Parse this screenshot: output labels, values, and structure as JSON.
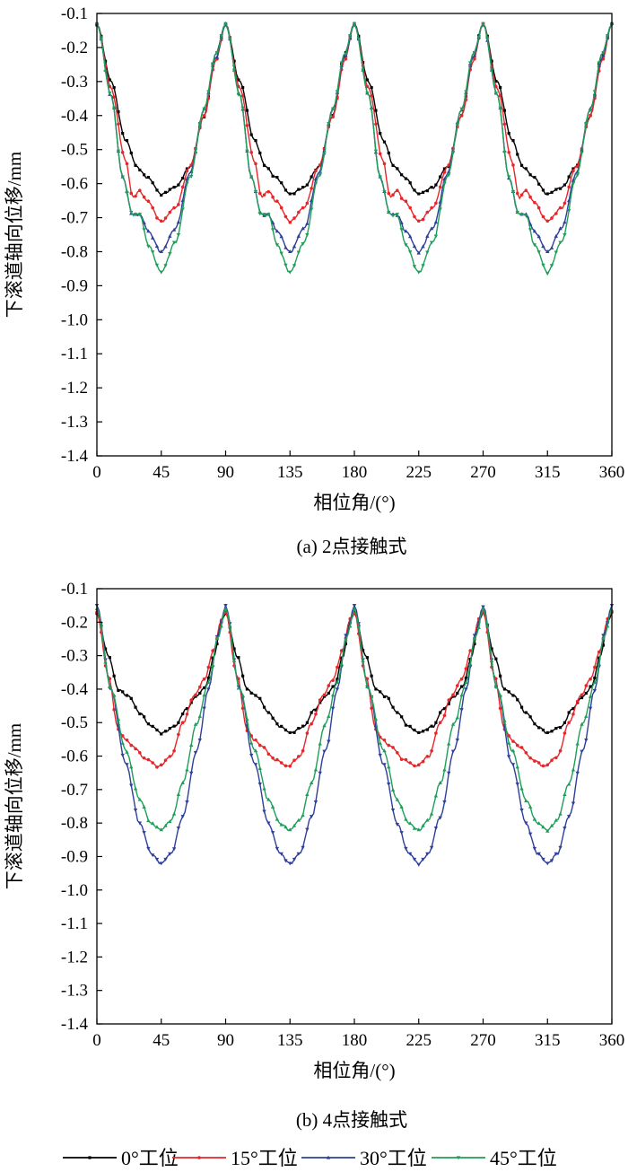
{
  "charts": [
    {
      "caption": "(a) 2点接触式",
      "xlabel": "相位角/(°)",
      "ylabel": "下滚道轴向位移/mm",
      "xticks": [
        "0",
        "45",
        "90",
        "135",
        "180",
        "225",
        "270",
        "315",
        "360"
      ],
      "yticks": [
        "-0.1",
        "-0.2",
        "-0.3",
        "-0.4",
        "-0.5",
        "-0.6",
        "-0.7",
        "-0.8",
        "-0.9",
        "-1.0",
        "-1.1",
        "-1.2",
        "-1.3",
        "-1.4"
      ]
    },
    {
      "caption": "(b) 4点接触式",
      "xlabel": "相位角/(°)",
      "ylabel": "下滚道轴向位移/mm",
      "xticks": [
        "0",
        "45",
        "90",
        "135",
        "180",
        "225",
        "270",
        "315",
        "360"
      ],
      "yticks": [
        "-0.1",
        "-0.2",
        "-0.3",
        "-0.4",
        "-0.5",
        "-0.6",
        "-0.7",
        "-0.8",
        "-0.9",
        "-1.0",
        "-1.1",
        "-1.2",
        "-1.3",
        "-1.4"
      ]
    }
  ],
  "legend": [
    {
      "label": "0°工位",
      "color": "#000000"
    },
    {
      "label": "15°工位",
      "color": "#e8262a"
    },
    {
      "label": "30°工位",
      "color": "#2e3f9a"
    },
    {
      "label": "45°工位",
      "color": "#1f9e5a"
    }
  ],
  "chart_data": [
    {
      "type": "line",
      "caption": "(a) 2点接触式",
      "xlabel": "相位角/(°)",
      "ylabel": "下滚道轴向位移/mm",
      "xlim": [
        0,
        360
      ],
      "ylim": [
        -1.4,
        -0.1
      ],
      "xticks": [
        0,
        45,
        90,
        135,
        180,
        225,
        270,
        315,
        360
      ],
      "grid": false,
      "period": 90,
      "series": [
        {
          "name": "0°工位",
          "color": "#000000",
          "marker": "square",
          "profile_x": [
            0,
            10,
            20,
            28,
            35,
            45,
            55,
            65,
            75,
            83,
            90
          ],
          "profile_y": [
            -0.13,
            -0.3,
            -0.47,
            -0.55,
            -0.58,
            -0.63,
            -0.61,
            -0.55,
            -0.4,
            -0.22,
            -0.13
          ]
        },
        {
          "name": "15°工位",
          "color": "#e8262a",
          "marker": "circle",
          "profile_x": [
            0,
            10,
            20,
            25,
            30,
            35,
            45,
            55,
            65,
            75,
            83,
            90
          ],
          "profile_y": [
            -0.13,
            -0.32,
            -0.53,
            -0.64,
            -0.62,
            -0.65,
            -0.71,
            -0.67,
            -0.55,
            -0.4,
            -0.24,
            -0.13
          ]
        },
        {
          "name": "30°工位",
          "color": "#2e3f9a",
          "marker": "triangle-up",
          "profile_x": [
            0,
            10,
            18,
            25,
            30,
            36,
            45,
            55,
            65,
            75,
            83,
            90
          ],
          "profile_y": [
            -0.13,
            -0.34,
            -0.58,
            -0.69,
            -0.69,
            -0.74,
            -0.8,
            -0.73,
            -0.57,
            -0.38,
            -0.23,
            -0.13
          ]
        },
        {
          "name": "45°工位",
          "color": "#1f9e5a",
          "marker": "triangle-down",
          "profile_x": [
            0,
            10,
            18,
            25,
            30,
            36,
            45,
            55,
            65,
            75,
            83,
            90
          ],
          "profile_y": [
            -0.13,
            -0.34,
            -0.58,
            -0.69,
            -0.69,
            -0.78,
            -0.86,
            -0.77,
            -0.58,
            -0.38,
            -0.22,
            -0.13
          ]
        }
      ]
    },
    {
      "type": "line",
      "caption": "(b) 4点接触式",
      "xlabel": "相位角/(°)",
      "ylabel": "下滚道轴向位移/mm",
      "xlim": [
        0,
        360
      ],
      "ylim": [
        -1.4,
        -0.1
      ],
      "xticks": [
        0,
        45,
        90,
        135,
        180,
        225,
        270,
        315,
        360
      ],
      "grid": false,
      "period": 90,
      "series": [
        {
          "name": "0°工位",
          "color": "#000000",
          "marker": "square",
          "profile_x": [
            0,
            8,
            15,
            22,
            30,
            38,
            45,
            55,
            62,
            70,
            76,
            82,
            87,
            90
          ],
          "profile_y": [
            -0.17,
            -0.3,
            -0.4,
            -0.42,
            -0.47,
            -0.51,
            -0.53,
            -0.51,
            -0.46,
            -0.42,
            -0.39,
            -0.3,
            -0.2,
            -0.17
          ]
        },
        {
          "name": "15°工位",
          "color": "#e8262a",
          "marker": "circle",
          "profile_x": [
            0,
            8,
            15,
            20,
            25,
            35,
            43,
            52,
            60,
            68,
            75,
            82,
            87,
            90
          ],
          "profile_y": [
            -0.17,
            -0.36,
            -0.52,
            -0.55,
            -0.57,
            -0.61,
            -0.63,
            -0.6,
            -0.5,
            -0.42,
            -0.37,
            -0.28,
            -0.19,
            -0.17
          ]
        },
        {
          "name": "30°工位",
          "color": "#2e3f9a",
          "marker": "triangle-down",
          "profile_x": [
            0,
            10,
            20,
            30,
            38,
            45,
            52,
            60,
            70,
            78,
            85,
            90
          ],
          "profile_y": [
            -0.15,
            -0.4,
            -0.62,
            -0.8,
            -0.89,
            -0.92,
            -0.89,
            -0.78,
            -0.58,
            -0.4,
            -0.23,
            -0.15
          ]
        },
        {
          "name": "45°工位",
          "color": "#1f9e5a",
          "marker": "triangle-up",
          "profile_x": [
            0,
            10,
            20,
            30,
            38,
            45,
            52,
            60,
            70,
            78,
            85,
            90
          ],
          "profile_y": [
            -0.16,
            -0.4,
            -0.58,
            -0.73,
            -0.8,
            -0.82,
            -0.79,
            -0.68,
            -0.5,
            -0.38,
            -0.24,
            -0.16
          ]
        }
      ]
    }
  ]
}
